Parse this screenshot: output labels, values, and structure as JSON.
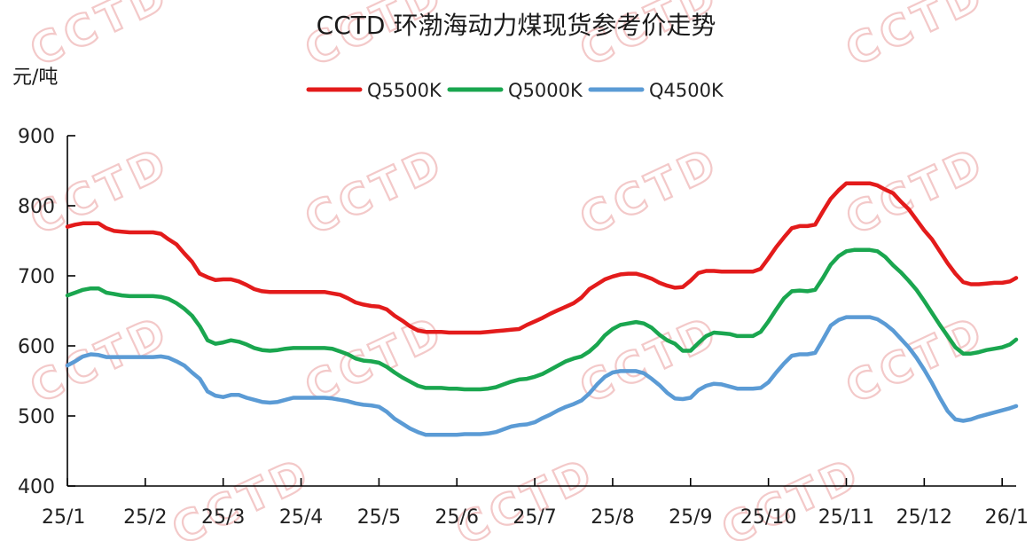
{
  "watermark": "CCTD",
  "chart_data": {
    "type": "line",
    "title": "CCTD 环渤海动力煤现货参考价走势",
    "ylabel": "元/吨",
    "xlabel": "",
    "ylim": [
      400,
      900
    ],
    "yticks": [
      400,
      500,
      600,
      700,
      800,
      900
    ],
    "xlim": [
      0,
      12.18
    ],
    "categories": [
      "25/1",
      "25/2",
      "25/3",
      "25/4",
      "25/5",
      "25/6",
      "25/7",
      "25/8",
      "25/9",
      "25/10",
      "25/11",
      "25/12",
      "26/1"
    ],
    "legend_position": "top-center",
    "grid": false,
    "x_unit": "months since 25/1",
    "series": [
      {
        "name": "Q5500K",
        "color": "#e31b1b",
        "x": [
          0,
          0.1,
          0.2,
          0.3,
          0.4,
          0.5,
          0.6,
          0.7,
          0.8,
          0.9,
          1.0,
          1.1,
          1.2,
          1.3,
          1.4,
          1.5,
          1.6,
          1.7,
          1.8,
          1.9,
          2.0,
          2.1,
          2.2,
          2.3,
          2.4,
          2.5,
          2.6,
          2.7,
          2.8,
          2.9,
          3.0,
          3.1,
          3.2,
          3.3,
          3.4,
          3.5,
          3.6,
          3.7,
          3.8,
          3.9,
          4.0,
          4.1,
          4.2,
          4.3,
          4.4,
          4.5,
          4.6,
          4.7,
          4.8,
          4.9,
          5.0,
          5.1,
          5.2,
          5.3,
          5.4,
          5.5,
          5.6,
          5.7,
          5.8,
          5.9,
          6.0,
          6.1,
          6.2,
          6.3,
          6.4,
          6.5,
          6.6,
          6.7,
          6.8,
          6.9,
          7.0,
          7.1,
          7.2,
          7.3,
          7.4,
          7.5,
          7.6,
          7.7,
          7.8,
          7.9,
          8.0,
          8.1,
          8.2,
          8.3,
          8.4,
          8.5,
          8.6,
          8.7,
          8.8,
          8.9,
          9.0,
          9.1,
          9.2,
          9.3,
          9.4,
          9.5,
          9.6,
          9.7,
          9.8,
          9.9,
          10.0,
          10.1,
          10.2,
          10.3,
          10.4,
          10.5,
          10.6,
          10.7,
          10.8,
          10.9,
          11.0,
          11.1,
          11.2,
          11.3,
          11.4,
          11.5,
          11.6,
          11.7,
          11.8,
          11.9,
          12.0,
          12.1,
          12.18
        ],
        "values": [
          770,
          773,
          775,
          775,
          775,
          768,
          764,
          763,
          762,
          762,
          762,
          762,
          760,
          752,
          745,
          732,
          720,
          703,
          698,
          694,
          695,
          695,
          692,
          687,
          681,
          678,
          677,
          677,
          677,
          677,
          677,
          677,
          677,
          677,
          675,
          673,
          668,
          662,
          659,
          657,
          656,
          652,
          643,
          636,
          628,
          622,
          620,
          620,
          620,
          619,
          619,
          619,
          619,
          619,
          620,
          621,
          622,
          623,
          624,
          630,
          635,
          640,
          646,
          651,
          656,
          661,
          669,
          681,
          688,
          695,
          699,
          702,
          703,
          703,
          700,
          696,
          690,
          686,
          683,
          684,
          693,
          704,
          707,
          707,
          706,
          706,
          706,
          706,
          706,
          710,
          725,
          741,
          755,
          768,
          771,
          771,
          773,
          792,
          810,
          822,
          832,
          832,
          832,
          832,
          829,
          823,
          818,
          806,
          795,
          780,
          765,
          752,
          735,
          718,
          703,
          691,
          688,
          688,
          689,
          690,
          690,
          692,
          697
        ]
      },
      {
        "name": "Q5000K",
        "color": "#1aa64f",
        "x": [
          0,
          0.1,
          0.2,
          0.3,
          0.4,
          0.5,
          0.6,
          0.7,
          0.8,
          0.9,
          1.0,
          1.1,
          1.2,
          1.3,
          1.4,
          1.5,
          1.6,
          1.7,
          1.8,
          1.9,
          2.0,
          2.1,
          2.2,
          2.3,
          2.4,
          2.5,
          2.6,
          2.7,
          2.8,
          2.9,
          3.0,
          3.1,
          3.2,
          3.3,
          3.4,
          3.5,
          3.6,
          3.7,
          3.8,
          3.9,
          4.0,
          4.1,
          4.2,
          4.3,
          4.4,
          4.5,
          4.6,
          4.7,
          4.8,
          4.9,
          5.0,
          5.1,
          5.2,
          5.3,
          5.4,
          5.5,
          5.6,
          5.7,
          5.8,
          5.9,
          6.0,
          6.1,
          6.2,
          6.3,
          6.4,
          6.5,
          6.6,
          6.7,
          6.8,
          6.9,
          7.0,
          7.1,
          7.2,
          7.3,
          7.4,
          7.5,
          7.6,
          7.7,
          7.8,
          7.9,
          8.0,
          8.1,
          8.2,
          8.3,
          8.4,
          8.5,
          8.6,
          8.7,
          8.8,
          8.9,
          9.0,
          9.1,
          9.2,
          9.3,
          9.4,
          9.5,
          9.6,
          9.7,
          9.8,
          9.9,
          10.0,
          10.1,
          10.2,
          10.3,
          10.4,
          10.5,
          10.6,
          10.7,
          10.8,
          10.9,
          11.0,
          11.1,
          11.2,
          11.3,
          11.4,
          11.5,
          11.6,
          11.7,
          11.8,
          11.9,
          12.0,
          12.1,
          12.18
        ],
        "values": [
          672,
          676,
          680,
          682,
          682,
          676,
          674,
          672,
          671,
          671,
          671,
          671,
          670,
          667,
          661,
          653,
          643,
          628,
          608,
          603,
          605,
          608,
          606,
          602,
          597,
          594,
          593,
          594,
          596,
          597,
          597,
          597,
          597,
          597,
          596,
          592,
          588,
          582,
          579,
          578,
          576,
          570,
          562,
          555,
          549,
          543,
          540,
          540,
          540,
          539,
          539,
          538,
          538,
          538,
          539,
          541,
          545,
          549,
          552,
          553,
          556,
          560,
          566,
          572,
          578,
          582,
          585,
          592,
          602,
          615,
          624,
          630,
          632,
          634,
          632,
          626,
          616,
          608,
          603,
          593,
          593,
          604,
          614,
          619,
          618,
          617,
          614,
          614,
          614,
          620,
          635,
          652,
          668,
          678,
          679,
          678,
          680,
          697,
          716,
          728,
          735,
          737,
          737,
          737,
          735,
          727,
          715,
          705,
          693,
          680,
          664,
          647,
          630,
          614,
          598,
          589,
          589,
          591,
          594,
          596,
          598,
          602,
          609
        ]
      },
      {
        "name": "Q4500K",
        "color": "#5b9bd5",
        "x": [
          0,
          0.1,
          0.2,
          0.3,
          0.4,
          0.5,
          0.6,
          0.7,
          0.8,
          0.9,
          1.0,
          1.1,
          1.2,
          1.3,
          1.4,
          1.5,
          1.6,
          1.7,
          1.8,
          1.9,
          2.0,
          2.1,
          2.2,
          2.3,
          2.4,
          2.5,
          2.6,
          2.7,
          2.8,
          2.9,
          3.0,
          3.1,
          3.2,
          3.3,
          3.4,
          3.5,
          3.6,
          3.7,
          3.8,
          3.9,
          4.0,
          4.1,
          4.2,
          4.3,
          4.4,
          4.5,
          4.6,
          4.7,
          4.8,
          4.9,
          5.0,
          5.1,
          5.2,
          5.3,
          5.4,
          5.5,
          5.6,
          5.7,
          5.8,
          5.9,
          6.0,
          6.1,
          6.2,
          6.3,
          6.4,
          6.5,
          6.6,
          6.7,
          6.8,
          6.9,
          7.0,
          7.1,
          7.2,
          7.3,
          7.4,
          7.5,
          7.6,
          7.7,
          7.8,
          7.9,
          8.0,
          8.1,
          8.2,
          8.3,
          8.4,
          8.5,
          8.6,
          8.7,
          8.8,
          8.9,
          9.0,
          9.1,
          9.2,
          9.3,
          9.4,
          9.5,
          9.6,
          9.7,
          9.8,
          9.9,
          10.0,
          10.1,
          10.2,
          10.3,
          10.4,
          10.5,
          10.6,
          10.7,
          10.8,
          10.9,
          11.0,
          11.1,
          11.2,
          11.3,
          11.4,
          11.5,
          11.6,
          11.7,
          11.8,
          11.9,
          12.0,
          12.1,
          12.18
        ],
        "values": [
          572,
          578,
          585,
          588,
          587,
          584,
          584,
          584,
          584,
          584,
          584,
          584,
          585,
          583,
          578,
          572,
          562,
          553,
          535,
          529,
          527,
          530,
          530,
          526,
          523,
          520,
          519,
          520,
          523,
          526,
          526,
          526,
          526,
          526,
          525,
          523,
          521,
          518,
          516,
          515,
          513,
          506,
          496,
          489,
          482,
          477,
          473,
          473,
          473,
          473,
          473,
          474,
          474,
          474,
          475,
          477,
          481,
          485,
          487,
          488,
          491,
          497,
          502,
          508,
          513,
          517,
          522,
          532,
          545,
          556,
          562,
          564,
          564,
          564,
          561,
          553,
          544,
          533,
          525,
          524,
          526,
          537,
          543,
          546,
          545,
          542,
          539,
          539,
          539,
          540,
          548,
          562,
          575,
          586,
          588,
          588,
          590,
          609,
          629,
          637,
          641,
          641,
          641,
          641,
          638,
          631,
          622,
          610,
          598,
          583,
          566,
          547,
          526,
          507,
          495,
          493,
          495,
          499,
          502,
          505,
          508,
          511,
          514
        ]
      }
    ]
  }
}
